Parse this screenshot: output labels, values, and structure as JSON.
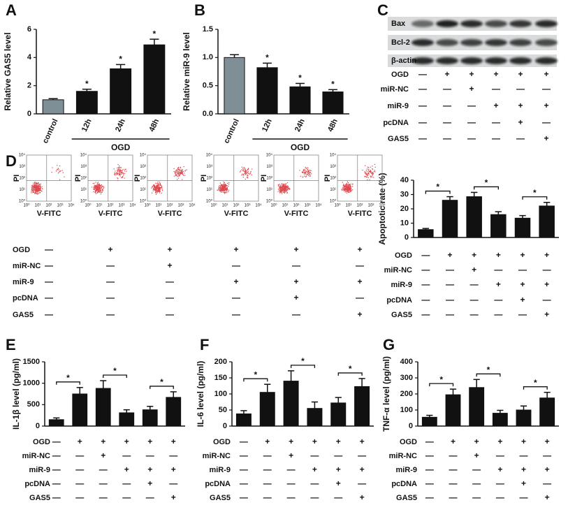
{
  "chart_data": [
    {
      "type": "bar",
      "panel": "A",
      "y_label": "Relative GAS5 level",
      "categories": [
        "control",
        "12h",
        "24h",
        "48h"
      ],
      "values": [
        1.0,
        1.6,
        3.2,
        4.9
      ],
      "errors": [
        0.08,
        0.15,
        0.3,
        0.4
      ],
      "colors": [
        "#7f8f96",
        "#111111",
        "#111111",
        "#111111"
      ],
      "ylim": [
        0,
        6
      ],
      "yticks": [
        0,
        2,
        4,
        6
      ],
      "group": {
        "label": "OGD",
        "from": 1,
        "to": 3
      },
      "annotations": [
        {
          "index": 1,
          "label": "*"
        },
        {
          "index": 2,
          "label": "*"
        },
        {
          "index": 3,
          "label": "*"
        }
      ]
    },
    {
      "type": "bar",
      "panel": "B",
      "y_label": "Relative miR-9 level",
      "categories": [
        "control",
        "12h",
        "24h",
        "48h"
      ],
      "values": [
        1.0,
        0.82,
        0.48,
        0.39
      ],
      "errors": [
        0.05,
        0.08,
        0.06,
        0.04
      ],
      "colors": [
        "#7f8f96",
        "#111111",
        "#111111",
        "#111111"
      ],
      "ylim": [
        0,
        1.5
      ],
      "yticks": [
        {
          "value": 0,
          "label": "0.0"
        },
        0.5,
        {
          "value": 1,
          "label": "1.0"
        },
        1.5
      ],
      "group": {
        "label": "OGD",
        "from": 1,
        "to": 3
      },
      "annotations": [
        {
          "index": 1,
          "label": "*"
        },
        {
          "index": 2,
          "label": "*"
        },
        {
          "index": 3,
          "label": "*"
        }
      ]
    },
    {
      "type": "bar",
      "y_label": "Apoptotic rate (%)",
      "values": [
        5.5,
        26,
        28.5,
        16,
        13.5,
        22
      ],
      "errors": [
        0.8,
        2.5,
        3,
        2,
        1.8,
        2.5
      ],
      "colors": [
        "#111111",
        "#111111",
        "#111111",
        "#111111",
        "#111111",
        "#111111"
      ],
      "ylim": [
        0,
        40
      ],
      "yticks": [
        0,
        10,
        20,
        30,
        40
      ],
      "brackets": [
        {
          "from": 0,
          "to": 1,
          "label": "*"
        },
        {
          "from": 2,
          "to": 3,
          "label": "*"
        },
        {
          "from": 4,
          "to": 5,
          "label": "*"
        }
      ]
    },
    {
      "type": "bar",
      "panel": "E",
      "y_label": "IL-1β level (pg/ml)",
      "values": [
        150,
        750,
        880,
        310,
        380,
        670
      ],
      "errors": [
        40,
        150,
        180,
        70,
        80,
        130
      ],
      "colors": [
        "#111111",
        "#111111",
        "#111111",
        "#111111",
        "#111111",
        "#111111"
      ],
      "ylim": [
        0,
        1500
      ],
      "yticks": [
        0,
        500,
        1000,
        1500
      ],
      "brackets": [
        {
          "from": 0,
          "to": 1,
          "label": "*"
        },
        {
          "from": 2,
          "to": 3,
          "label": "*"
        },
        {
          "from": 4,
          "to": 5,
          "label": "*"
        }
      ]
    },
    {
      "type": "bar",
      "panel": "F",
      "y_label": "IL-6 level (pg/ml)",
      "values": [
        38,
        105,
        140,
        55,
        72,
        123
      ],
      "errors": [
        10,
        25,
        32,
        20,
        17,
        25
      ],
      "colors": [
        "#111111",
        "#111111",
        "#111111",
        "#111111",
        "#111111",
        "#111111"
      ],
      "ylim": [
        0,
        200
      ],
      "yticks": [
        0,
        50,
        100,
        150,
        200
      ],
      "brackets": [
        {
          "from": 0,
          "to": 1,
          "label": "*"
        },
        {
          "from": 2,
          "to": 3,
          "label": "*"
        },
        {
          "from": 4,
          "to": 5,
          "label": "*"
        }
      ]
    },
    {
      "type": "bar",
      "panel": "G",
      "y_label": "TNF-α level (pg/ml)",
      "values": [
        55,
        195,
        240,
        80,
        100,
        175
      ],
      "errors": [
        12,
        35,
        50,
        18,
        25,
        35
      ],
      "colors": [
        "#111111",
        "#111111",
        "#111111",
        "#111111",
        "#111111",
        "#111111"
      ],
      "ylim": [
        0,
        400
      ],
      "yticks": [
        0,
        100,
        200,
        300,
        400
      ],
      "brackets": [
        {
          "from": 0,
          "to": 1,
          "label": "*"
        },
        {
          "from": 2,
          "to": 3,
          "label": "*"
        },
        {
          "from": 4,
          "to": 5,
          "label": "*"
        }
      ]
    }
  ],
  "blot": {
    "panel": "C",
    "rows": [
      "Bax",
      "Bcl-2",
      "β-actin"
    ]
  },
  "flow": {
    "panel": "D",
    "x_label": "V-FITC",
    "y_label": "PI",
    "ticks": [
      "10⁰",
      "10¹",
      "10²",
      "10³",
      "10⁴"
    ]
  },
  "conditions": {
    "rows": [
      {
        "label": "OGD",
        "signs": [
          "—",
          "+",
          "+",
          "+",
          "+",
          "+"
        ]
      },
      {
        "label": "miR-NC",
        "signs": [
          "—",
          "—",
          "+",
          "—",
          "—",
          "—"
        ]
      },
      {
        "label": "miR-9",
        "signs": [
          "—",
          "—",
          "—",
          "+",
          "+",
          "+"
        ]
      },
      {
        "label": "pcDNA",
        "signs": [
          "—",
          "—",
          "—",
          "—",
          "+",
          "—"
        ]
      },
      {
        "label": "GAS5",
        "signs": [
          "—",
          "—",
          "—",
          "—",
          "—",
          "+"
        ]
      }
    ]
  }
}
